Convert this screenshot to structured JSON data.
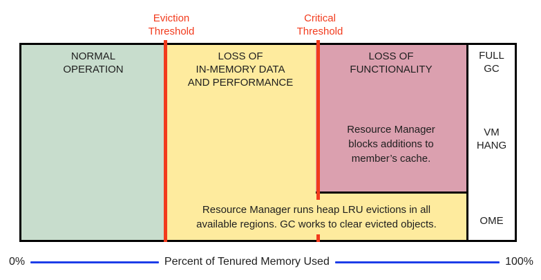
{
  "colors": {
    "normal_zone_green": "#c8ddcd",
    "eviction_zone_yellow": "#feeb9e",
    "critical_zone_pink": "#dba0af",
    "threshold_red": "#f23a1c",
    "axis_blue": "#1d3de8",
    "border_black": "#000000",
    "text": "#1e1e1e"
  },
  "thresholds": {
    "eviction": {
      "lines": [
        "Eviction",
        "Threshold"
      ]
    },
    "critical": {
      "lines": [
        "Critical",
        "Threshold"
      ]
    }
  },
  "zones": {
    "normal": {
      "title_lines": [
        "NORMAL",
        "OPERATION"
      ]
    },
    "eviction_zone": {
      "title_lines": [
        "LOSS OF",
        "IN-MEMORY DATA",
        "AND PERFORMANCE"
      ]
    },
    "critical_zone": {
      "title_lines": [
        "LOSS OF",
        "FUNCTIONALITY"
      ],
      "body_lines": [
        "Resource Manager",
        "blocks additions to",
        "member’s cache."
      ]
    },
    "eviction_strip": {
      "body_lines": [
        "Resource Manager runs heap LRU evictions in all",
        "available regions. GC works to clear evicted objects."
      ]
    },
    "outcomes": {
      "full_gc_lines": [
        "FULL",
        "GC"
      ],
      "vm_hang_lines": [
        "VM",
        "HANG"
      ],
      "ome": "OME"
    }
  },
  "axis": {
    "min_label": "0%",
    "max_label": "100%",
    "title": "Percent of Tenured Memory Used"
  }
}
